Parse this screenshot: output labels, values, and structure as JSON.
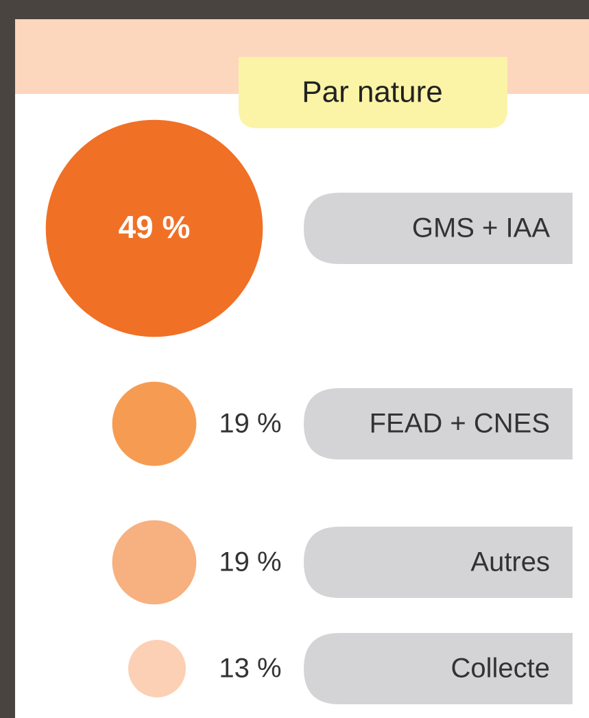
{
  "chart_data": {
    "type": "bubble",
    "title": "Par nature",
    "categories": [
      "GMS + IAA",
      "FEAD + CNES",
      "Autres",
      "Collecte"
    ],
    "values": [
      49,
      19,
      19,
      13
    ],
    "value_labels": [
      "49 %",
      "19 %",
      "19 %",
      "13 %"
    ],
    "colors": [
      "#f07025",
      "#f69c52",
      "#f7b07f",
      "#fcd0b5"
    ]
  }
}
